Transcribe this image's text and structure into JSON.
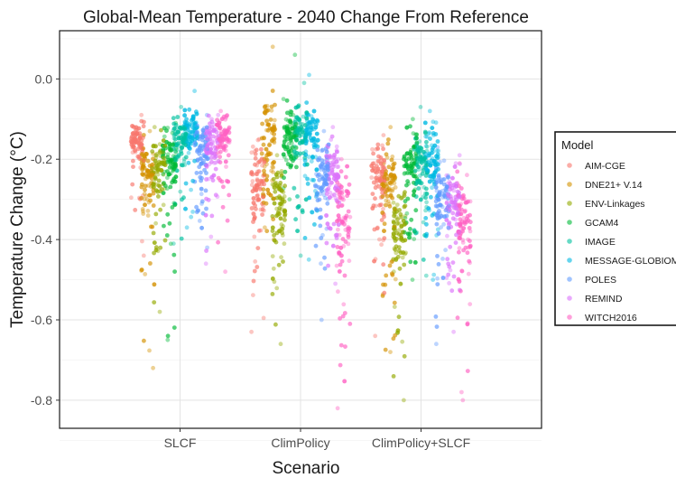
{
  "chart_data": {
    "type": "scatter",
    "title": "Global-Mean Temperature - 2040 Change From Reference",
    "xlabel": "Scenario",
    "ylabel": "Temperature Change (°C)",
    "categories": [
      "SLCF",
      "ClimPolicy",
      "ClimPolicy+SLCF"
    ],
    "ylim": [
      -0.87,
      0.12
    ],
    "yticks": [
      "0.0",
      "-0.2",
      "-0.4",
      "-0.6",
      "-0.8"
    ],
    "grid": true,
    "legend": {
      "title": "Model",
      "placement": "right"
    },
    "series": [
      {
        "name": "AIM-CGE",
        "color": "#F8766D",
        "values": [
          {
            "median": -0.15,
            "q1": -0.18,
            "q3": -0.12,
            "min": -0.44,
            "max": -0.09
          },
          {
            "median": -0.26,
            "q1": -0.33,
            "q3": -0.2,
            "min": -0.63,
            "max": -0.15
          },
          {
            "median": -0.25,
            "q1": -0.31,
            "q3": -0.2,
            "min": -0.64,
            "max": -0.14
          }
        ]
      },
      {
        "name": "DNE21+ V.14",
        "color": "#D39200",
        "values": [
          {
            "median": -0.24,
            "q1": -0.3,
            "q3": -0.19,
            "min": -0.72,
            "max": -0.13
          },
          {
            "median": -0.14,
            "q1": -0.2,
            "q3": -0.08,
            "min": -0.4,
            "max": 0.08
          },
          {
            "median": -0.27,
            "q1": -0.33,
            "q3": -0.21,
            "min": -0.68,
            "max": -0.12
          }
        ]
      },
      {
        "name": "ENV-Linkages",
        "color": "#93AA00",
        "values": [
          {
            "median": -0.22,
            "q1": -0.28,
            "q3": -0.17,
            "min": -0.58,
            "max": -0.12
          },
          {
            "median": -0.3,
            "q1": -0.36,
            "q3": -0.24,
            "min": -0.66,
            "max": -0.19
          },
          {
            "median": -0.37,
            "q1": -0.44,
            "q3": -0.31,
            "min": -0.8,
            "max": -0.25
          }
        ]
      },
      {
        "name": "GCAM4",
        "color": "#00BA38",
        "values": [
          {
            "median": -0.2,
            "q1": -0.25,
            "q3": -0.16,
            "min": -0.65,
            "max": -0.11
          },
          {
            "median": -0.14,
            "q1": -0.18,
            "q3": -0.09,
            "min": -0.3,
            "max": 0.06
          },
          {
            "median": -0.21,
            "q1": -0.26,
            "q3": -0.17,
            "min": -0.5,
            "max": -0.1
          }
        ]
      },
      {
        "name": "IMAGE",
        "color": "#00C19F",
        "values": [
          {
            "median": -0.15,
            "q1": -0.19,
            "q3": -0.12,
            "min": -0.41,
            "max": -0.07
          },
          {
            "median": -0.13,
            "q1": -0.17,
            "q3": -0.09,
            "min": -0.44,
            "max": -0.01
          },
          {
            "median": -0.2,
            "q1": -0.25,
            "q3": -0.16,
            "min": -0.49,
            "max": -0.07
          }
        ]
      },
      {
        "name": "MESSAGE-GLOBIOM",
        "color": "#00B9E3",
        "values": [
          {
            "median": -0.12,
            "q1": -0.15,
            "q3": -0.09,
            "min": -0.37,
            "max": -0.03
          },
          {
            "median": -0.14,
            "q1": -0.18,
            "q3": -0.1,
            "min": -0.45,
            "max": 0.01
          },
          {
            "median": -0.19,
            "q1": -0.24,
            "q3": -0.15,
            "min": -0.5,
            "max": -0.08
          }
        ]
      },
      {
        "name": "POLES",
        "color": "#619CFF",
        "values": [
          {
            "median": -0.17,
            "q1": -0.21,
            "q3": -0.13,
            "min": -0.42,
            "max": -0.09
          },
          {
            "median": -0.24,
            "q1": -0.28,
            "q3": -0.19,
            "min": -0.6,
            "max": -0.13
          },
          {
            "median": -0.28,
            "q1": -0.33,
            "q3": -0.23,
            "min": -0.66,
            "max": -0.17
          }
        ]
      },
      {
        "name": "REMIND",
        "color": "#DB72FB",
        "values": [
          {
            "median": -0.16,
            "q1": -0.2,
            "q3": -0.12,
            "min": -0.46,
            "max": -0.09
          },
          {
            "median": -0.22,
            "q1": -0.27,
            "q3": -0.18,
            "min": -0.51,
            "max": -0.12
          },
          {
            "median": -0.31,
            "q1": -0.37,
            "q3": -0.25,
            "min": -0.63,
            "max": -0.19
          }
        ]
      },
      {
        "name": "WITCH2016",
        "color": "#FF61C3",
        "values": [
          {
            "median": -0.14,
            "q1": -0.17,
            "q3": -0.11,
            "min": -0.48,
            "max": -0.08
          },
          {
            "median": -0.34,
            "q1": -0.42,
            "q3": -0.27,
            "min": -0.82,
            "max": -0.2
          },
          {
            "median": -0.34,
            "q1": -0.41,
            "q3": -0.28,
            "min": -0.8,
            "max": -0.21
          }
        ]
      }
    ]
  }
}
